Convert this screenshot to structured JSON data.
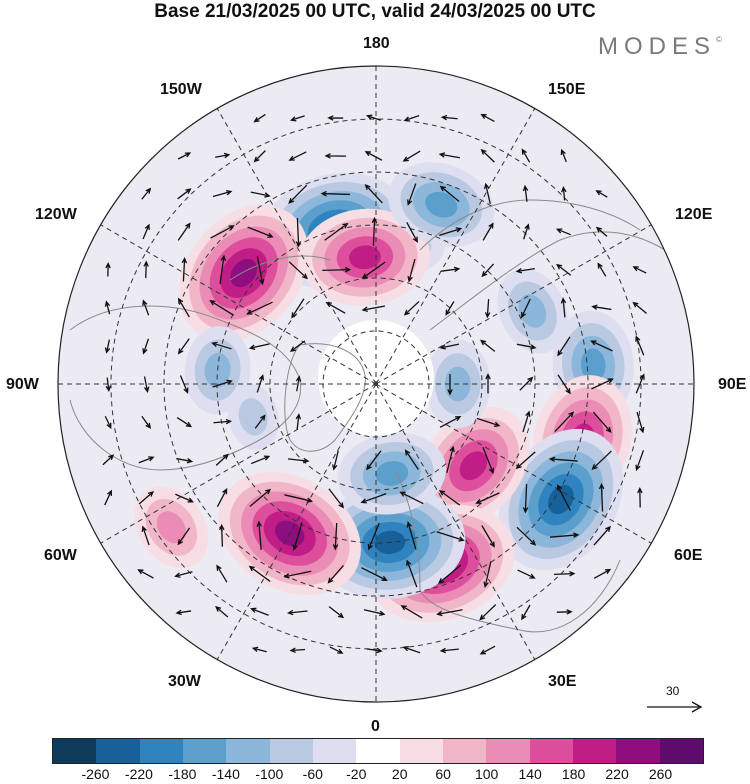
{
  "header": {
    "title": "Base 21/03/2025 00 UTC, valid 24/03/2025 00 UTC",
    "brand": "MODES",
    "brand_mark": "©"
  },
  "map": {
    "projection": "north polar stereographic",
    "longitude_labels": {
      "top": "180",
      "bottom": "0",
      "left": "90W",
      "right": "90E",
      "upper_left_1": "150W",
      "upper_left_2": "120W",
      "upper_right_1": "150E",
      "upper_right_2": "120E",
      "lower_left_1": "60W",
      "lower_left_2": "30W",
      "lower_right_1": "60E",
      "lower_right_2": "30E"
    },
    "anomaly_centers": [
      {
        "lon": 170,
        "lat": 58,
        "sign": "negative",
        "level": 2
      },
      {
        "lon": -165,
        "lat": 55,
        "sign": "negative",
        "level": 5
      },
      {
        "lon": -130,
        "lat": 52,
        "sign": "positive",
        "level": 5
      },
      {
        "lon": -175,
        "lat": 62,
        "sign": "positive",
        "level": 4
      },
      {
        "lon": 160,
        "lat": 48,
        "sign": "negative",
        "level": 3
      },
      {
        "lon": 115,
        "lat": 52,
        "sign": "negative",
        "level": 2
      },
      {
        "lon": 95,
        "lat": 42,
        "sign": "negative",
        "level": 3
      },
      {
        "lon": 75,
        "lat": 43,
        "sign": "positive",
        "level": 4
      },
      {
        "lon": 58,
        "lat": 42,
        "sign": "negative",
        "level": 5
      },
      {
        "lon": 50,
        "lat": 62,
        "sign": "positive",
        "level": 4
      },
      {
        "lon": 90,
        "lat": 72,
        "sign": "negative",
        "level": 2
      },
      {
        "lon": 20,
        "lat": 48,
        "sign": "positive",
        "level": 5
      },
      {
        "lon": 5,
        "lat": 55,
        "sign": "negative",
        "level": 5
      },
      {
        "lon": 10,
        "lat": 70,
        "sign": "negative",
        "level": 3
      },
      {
        "lon": -30,
        "lat": 52,
        "sign": "positive",
        "level": 5
      },
      {
        "lon": -95,
        "lat": 55,
        "sign": "negative",
        "level": 2
      },
      {
        "lon": -55,
        "lat": 35,
        "sign": "positive",
        "level": 2
      },
      {
        "lon": -75,
        "lat": 62,
        "sign": "negative",
        "level": 1
      }
    ]
  },
  "reference_vector": {
    "value": "30"
  },
  "colorbar": {
    "colors": [
      "#0e3a5c",
      "#17609a",
      "#2f84bf",
      "#5b9fcd",
      "#8db6db",
      "#bac9e2",
      "#dddff0",
      "#ffffff",
      "#f7dde4",
      "#f2b6c9",
      "#ea8cb5",
      "#dd4f9c",
      "#c01d86",
      "#8e0d7f",
      "#5e0a6e"
    ],
    "ticks": [
      "-260",
      "-220",
      "-180",
      "-140",
      "-100",
      "-60",
      "-20",
      "20",
      "60",
      "100",
      "140",
      "180",
      "220",
      "260"
    ]
  }
}
